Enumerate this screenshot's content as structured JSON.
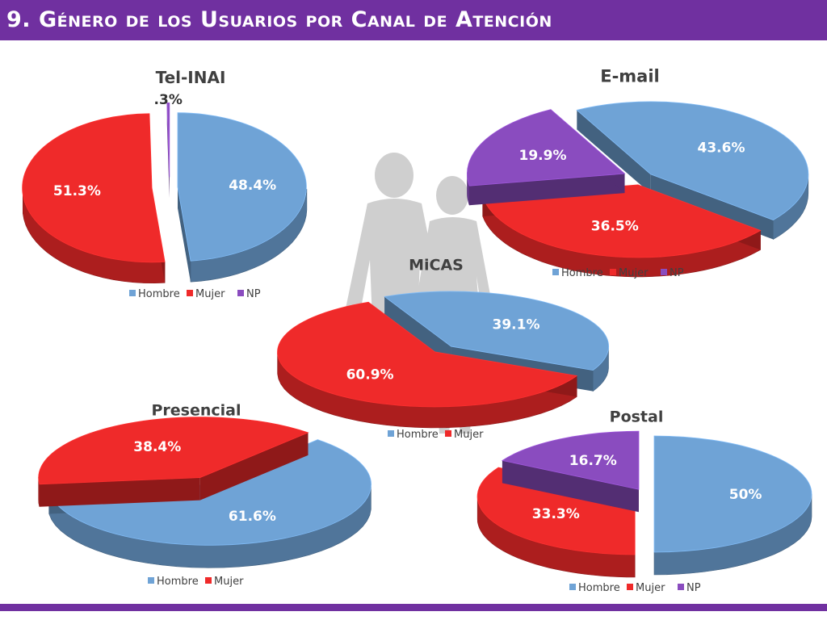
{
  "header": {
    "title": "9. Género de los Usuarios por Canal de Atención"
  },
  "colors": {
    "header": "#7030a0",
    "hombre": "#6fa3d6",
    "mujer": "#ef2a2a",
    "np": "#8a4cbf"
  },
  "chart_data": [
    {
      "type": "pie",
      "title": "Tel-INAI",
      "categories": [
        "Hombre",
        "Mujer",
        "NP"
      ],
      "values": [
        48.4,
        51.3,
        0.3
      ],
      "labels": [
        "48.4%",
        "51.3%",
        ".3%"
      ],
      "legend": [
        "Hombre",
        "Mujer",
        "NP"
      ]
    },
    {
      "type": "pie",
      "title": "E-mail",
      "categories": [
        "Hombre",
        "Mujer",
        "NP"
      ],
      "values": [
        43.6,
        36.5,
        19.9
      ],
      "labels": [
        "43.6%",
        "36.5%",
        "19.9%"
      ],
      "legend": [
        "Hombre",
        "Mujer",
        "NP"
      ]
    },
    {
      "type": "pie",
      "title": "MiCAS",
      "categories": [
        "Hombre",
        "Mujer"
      ],
      "values": [
        39.1,
        60.9
      ],
      "labels": [
        "39.1%",
        "60.9%"
      ],
      "legend": [
        "Hombre",
        "Mujer"
      ]
    },
    {
      "type": "pie",
      "title": "Presencial",
      "categories": [
        "Hombre",
        "Mujer"
      ],
      "values": [
        61.6,
        38.4
      ],
      "labels": [
        "61.6%",
        "38.4%"
      ],
      "legend": [
        "Hombre",
        "Mujer"
      ]
    },
    {
      "type": "pie",
      "title": "Postal",
      "categories": [
        "Hombre",
        "Mujer",
        "NP"
      ],
      "values": [
        50,
        33.3,
        16.7
      ],
      "labels": [
        "50%",
        "33.3%",
        "16.7%"
      ],
      "legend": [
        "Hombre",
        "Mujer",
        "NP"
      ]
    }
  ]
}
